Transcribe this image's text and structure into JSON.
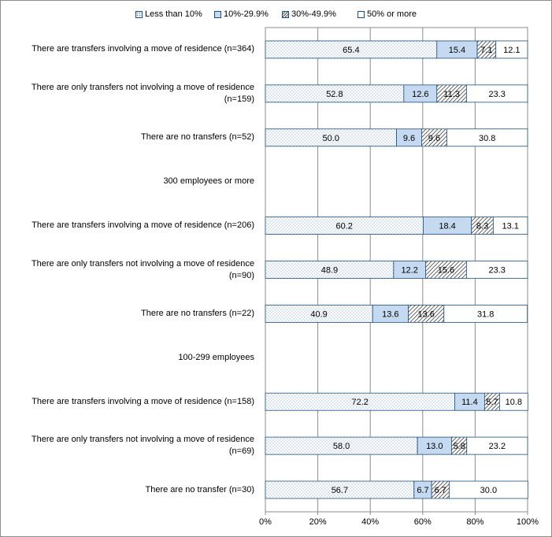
{
  "chart_data": {
    "type": "bar",
    "orientation": "horizontal",
    "stacked": "percent",
    "legend": {
      "position": "top"
    },
    "series": [
      {
        "name": "Less than 10%",
        "color": "#ffffff",
        "pattern": "dots"
      },
      {
        "name": "10%-29.9%",
        "color": "#c5d9f1",
        "pattern": "solid"
      },
      {
        "name": "30%-49.9%",
        "color": "#ffffff",
        "pattern": "diagonal"
      },
      {
        "name": "50% or more",
        "color": "#ffffff",
        "pattern": "none"
      }
    ],
    "rows": [
      {
        "label": "There are transfers involving a move of residence (n=364)",
        "values": [
          65.4,
          15.4,
          7.1,
          12.1
        ]
      },
      {
        "label": "There are only transfers not involving a move of residence (n=159)",
        "values": [
          52.8,
          12.6,
          11.3,
          23.3
        ]
      },
      {
        "label": "There are no transfers (n=52)",
        "values": [
          50.0,
          9.6,
          9.6,
          30.8
        ]
      },
      {
        "label": "300 employees or more",
        "values": null
      },
      {
        "label": "There are transfers involving a move of residence (n=206)",
        "values": [
          60.2,
          18.4,
          8.3,
          13.1
        ]
      },
      {
        "label": "There are only transfers not involving a move of residence (n=90)",
        "values": [
          48.9,
          12.2,
          15.6,
          23.3
        ]
      },
      {
        "label": "There are no transfers (n=22)",
        "values": [
          40.9,
          13.6,
          13.6,
          31.8
        ]
      },
      {
        "label": "100-299 employees",
        "values": null
      },
      {
        "label": "There are transfers involving a move of residence (n=158)",
        "values": [
          72.2,
          11.4,
          5.7,
          10.8
        ]
      },
      {
        "label": "There are only transfers not involving a move of residence (n=69)",
        "values": [
          58.0,
          13.0,
          5.8,
          23.2
        ]
      },
      {
        "label": "There are no transfer (n=30)",
        "values": [
          56.7,
          6.7,
          6.7,
          30.0
        ]
      }
    ],
    "xticks": [
      "0%",
      "20%",
      "40%",
      "60%",
      "80%",
      "100%"
    ],
    "xlim": [
      0,
      100
    ],
    "grid": true
  }
}
